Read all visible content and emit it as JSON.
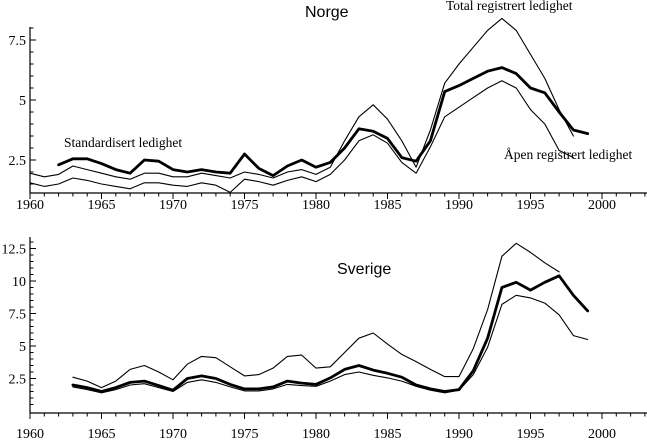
{
  "figure": {
    "description": "Two stacked line charts of unemployment rates in Norway and Sweden, 1960-2000",
    "ink_color": "#000000",
    "background_color": "#ffffff"
  },
  "chart_data": [
    {
      "type": "line",
      "title": "Norge",
      "x_range": [
        1960,
        2003
      ],
      "x_tick_labels": [
        "1960",
        "1965",
        "1970",
        "1975",
        "1980",
        "1985",
        "1990",
        "1995",
        "2000"
      ],
      "y_tick_labels": [
        "2.5",
        "5",
        "7.5"
      ],
      "y_tick_values": [
        2.5,
        5,
        7.5
      ],
      "y_minor_step": 0.5,
      "ylim": [
        1.1,
        8.1
      ],
      "grid": false,
      "legend_position": "inline-annotations",
      "series": [
        {
          "name": "Total registrert ledighet",
          "line": "thin",
          "start_year": 1960,
          "values": [
            1.95,
            1.8,
            1.9,
            2.25,
            2.1,
            1.95,
            1.8,
            1.7,
            1.95,
            1.95,
            1.8,
            1.8,
            1.95,
            1.85,
            1.75,
            2.0,
            1.9,
            1.75,
            2.0,
            2.1,
            1.9,
            2.2,
            3.3,
            4.3,
            4.8,
            4.2,
            3.3,
            2.2,
            3.75,
            5.7,
            6.5,
            7.2,
            7.9,
            8.4,
            7.9,
            6.9,
            5.9,
            4.6,
            3.5
          ]
        },
        {
          "name": "Standardisert ledighet",
          "line": "thick",
          "start_year": 1962,
          "values": [
            2.3,
            2.55,
            2.55,
            2.35,
            2.1,
            1.95,
            2.5,
            2.45,
            2.1,
            2.0,
            2.1,
            2.0,
            1.95,
            2.75,
            2.15,
            1.85,
            2.25,
            2.5,
            2.2,
            2.4,
            3.0,
            3.8,
            3.7,
            3.4,
            2.6,
            2.45,
            3.3,
            5.35,
            5.6,
            5.9,
            6.2,
            6.35,
            6.1,
            5.5,
            5.3,
            4.5,
            3.75,
            3.6
          ]
        },
        {
          "name": "Åpen registrert ledighet",
          "line": "thin",
          "start_year": 1960,
          "values": [
            1.55,
            1.4,
            1.5,
            1.75,
            1.65,
            1.5,
            1.4,
            1.3,
            1.55,
            1.55,
            1.45,
            1.4,
            1.55,
            1.45,
            1.15,
            1.7,
            1.6,
            1.45,
            1.65,
            1.8,
            1.6,
            1.9,
            2.5,
            3.3,
            3.55,
            3.2,
            2.4,
            1.95,
            3.05,
            4.3,
            4.7,
            5.1,
            5.5,
            5.8,
            5.5,
            4.6,
            4.0,
            2.9,
            2.6
          ]
        }
      ]
    },
    {
      "type": "line",
      "title": "Sverige",
      "x_range": [
        1960,
        2003
      ],
      "x_tick_labels": [
        "1960",
        "1965",
        "1970",
        "1975",
        "1980",
        "1985",
        "1990",
        "1995",
        "2000"
      ],
      "y_tick_labels": [
        "2.5",
        "5",
        "7.5",
        "10",
        "12.5"
      ],
      "y_tick_values": [
        2.5,
        5,
        7.5,
        10,
        12.5
      ],
      "y_minor_step": 0.5,
      "ylim": [
        0,
        13.4
      ],
      "grid": false,
      "legend_position": "none",
      "series": [
        {
          "name": "Total registrert ledighet",
          "line": "thin",
          "start_year": 1963,
          "values": [
            2.6,
            2.3,
            1.8,
            2.3,
            3.2,
            3.5,
            3.0,
            2.4,
            3.6,
            4.2,
            4.1,
            3.4,
            2.7,
            2.8,
            3.3,
            4.2,
            4.3,
            3.3,
            3.4,
            4.5,
            5.6,
            6.0,
            5.15,
            4.35,
            3.8,
            3.2,
            2.65,
            2.65,
            4.8,
            7.8,
            11.9,
            12.9,
            12.2,
            11.4,
            10.7
          ]
        },
        {
          "name": "Standardisert ledighet",
          "line": "thick",
          "start_year": 1963,
          "values": [
            2.0,
            1.8,
            1.5,
            1.8,
            2.2,
            2.3,
            1.95,
            1.6,
            2.5,
            2.7,
            2.5,
            2.05,
            1.7,
            1.7,
            1.85,
            2.3,
            2.15,
            2.05,
            2.55,
            3.2,
            3.5,
            3.15,
            2.9,
            2.6,
            2.0,
            1.7,
            1.5,
            1.65,
            3.1,
            5.6,
            9.5,
            9.9,
            9.3,
            9.9,
            10.4,
            8.9,
            7.7
          ]
        },
        {
          "name": "Åpen registrert ledighet",
          "line": "thin",
          "start_year": 1963,
          "values": [
            1.85,
            1.65,
            1.4,
            1.65,
            2.0,
            2.1,
            1.8,
            1.5,
            2.2,
            2.4,
            2.2,
            1.85,
            1.55,
            1.55,
            1.7,
            2.05,
            1.95,
            1.9,
            2.3,
            2.8,
            3.0,
            2.75,
            2.55,
            2.3,
            1.9,
            1.6,
            1.4,
            1.6,
            2.8,
            4.9,
            8.2,
            8.9,
            8.7,
            8.3,
            7.4,
            5.8,
            5.5
          ]
        }
      ]
    }
  ]
}
